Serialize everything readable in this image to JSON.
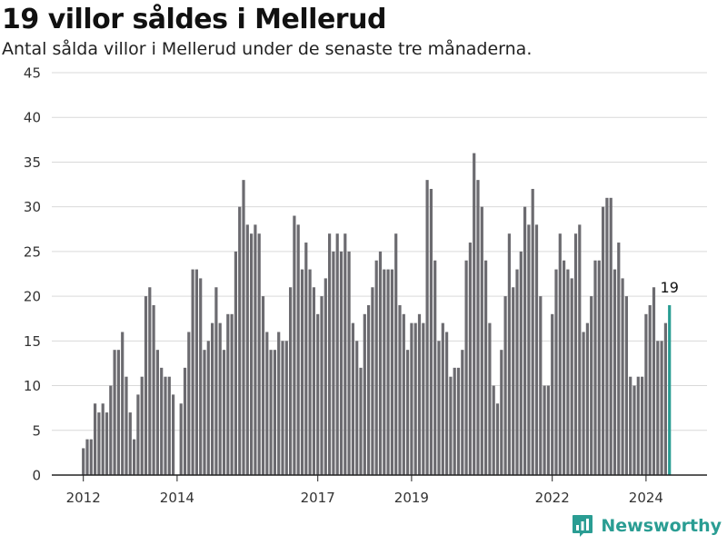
{
  "chart_data": {
    "type": "bar",
    "title": "19 villor såldes i Mellerud",
    "subtitle": "Antal sålda villor i Mellerud under de senaste tre månaderna.",
    "xlabel": "",
    "ylabel": "",
    "ylim": [
      0,
      45
    ],
    "yticks": [
      0,
      5,
      10,
      15,
      20,
      25,
      30,
      35,
      40,
      45
    ],
    "xtick_labels": [
      "2012",
      "2014",
      "2017",
      "2019",
      "2022",
      "2024"
    ],
    "start": "2012-01",
    "frequency": "monthly",
    "grid": true,
    "values": [
      3,
      4,
      4,
      8,
      7,
      8,
      7,
      10,
      14,
      14,
      16,
      11,
      7,
      4,
      9,
      11,
      20,
      21,
      19,
      14,
      12,
      11,
      11,
      9,
      0,
      8,
      12,
      16,
      23,
      23,
      22,
      14,
      15,
      17,
      21,
      17,
      14,
      18,
      18,
      25,
      30,
      33,
      28,
      27,
      28,
      27,
      20,
      16,
      14,
      14,
      16,
      15,
      15,
      21,
      29,
      28,
      23,
      26,
      23,
      21,
      18,
      20,
      22,
      27,
      25,
      27,
      25,
      27,
      25,
      17,
      15,
      12,
      18,
      19,
      21,
      24,
      25,
      23,
      23,
      23,
      27,
      19,
      18,
      14,
      17,
      17,
      18,
      17,
      33,
      32,
      24,
      15,
      17,
      16,
      11,
      12,
      12,
      14,
      24,
      26,
      36,
      33,
      30,
      24,
      17,
      10,
      8,
      14,
      20,
      27,
      21,
      23,
      25,
      30,
      28,
      32,
      28,
      20,
      10,
      10,
      18,
      23,
      27,
      24,
      23,
      22,
      27,
      28,
      16,
      17,
      20,
      24,
      24,
      30,
      31,
      31,
      23,
      26,
      22,
      20,
      11,
      10,
      11,
      11,
      18,
      19,
      21,
      15,
      15,
      17,
      19
    ],
    "highlight": {
      "value": 19,
      "label": "19",
      "color": "#2a9d93"
    },
    "bar_color": "#6c6b70"
  },
  "brand": {
    "name": "Newsworthy",
    "icon": "bar-chart-logo-icon",
    "color": "#2a9d93"
  }
}
